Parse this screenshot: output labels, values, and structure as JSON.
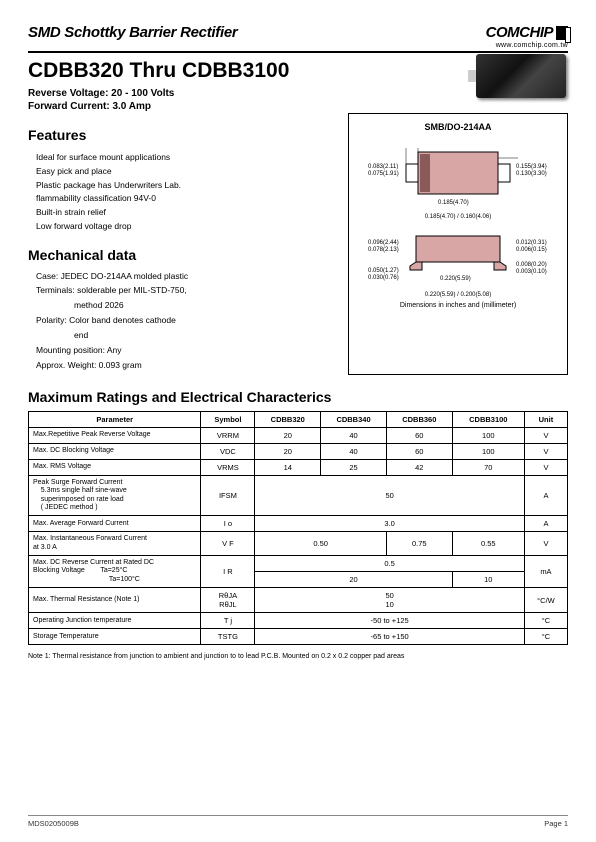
{
  "header": {
    "title": "SMD Schottky Barrier Rectifier",
    "logo_text": "COMCHIP",
    "url": "www.comchip.com.tw"
  },
  "part": {
    "title": "CDBB320 Thru CDBB3100",
    "rev_v": "Reverse Voltage: 20 - 100 Volts",
    "fwd_i": "Forward Current: 3.0 Amp"
  },
  "features": {
    "heading": "Features",
    "items": [
      "Ideal for surface mount applications",
      "Easy pick and place",
      "Plastic package has Underwriters Lab.",
      "flammability classification 94V-0",
      "Built-in strain relief",
      "Low forward voltage drop"
    ]
  },
  "mech": {
    "heading": "Mechanical data",
    "case": "Case: JEDEC DO-214AA  molded plastic",
    "term1": "Terminals:  solderable per   MIL-STD-750,",
    "term2": "method 2026",
    "pol1": "Polarity: Color  band denotes cathode",
    "pol2": "end",
    "mount": "Mounting position: Any",
    "weight": "Approx. Weight: 0.093 gram"
  },
  "pkg": {
    "title": "SMB/DO-214AA",
    "d1": "0.083(2.11)",
    "d1b": "0.075(1.91)",
    "d2": "0.155(3.94)",
    "d2b": "0.130(3.30)",
    "d3": "0.185(4.70)",
    "d3b": "0.160(4.06)",
    "d4": "0.012(0.31)",
    "d4b": "0.006(0.15)",
    "d5": "0.096(2.44)",
    "d5b": "0.078(2.13)",
    "d6": "0.050(1.27)",
    "d6b": "0.030(0.76)",
    "d7": "0.220(5.59)",
    "d7b": "0.200(5.08)",
    "d8": "0.008(0.20)",
    "d8b": "0.003(0.10)",
    "note": "Dimensions in inches and (millimeter)"
  },
  "ratings": {
    "heading": "Maximum Ratings and Electrical Characterics",
    "cols": [
      "Parameter",
      "Symbol",
      "CDBB320",
      "CDBB340",
      "CDBB360",
      "CDBB3100",
      "Unit"
    ],
    "rows": [
      {
        "param": "Max.Repetitive Peak Reverse Voltage",
        "sym": "VRRM",
        "v": [
          "20",
          "40",
          "60",
          "100"
        ],
        "unit": "V"
      },
      {
        "param": "Max. DC Blocking Voltage",
        "sym": "VDC",
        "v": [
          "20",
          "40",
          "60",
          "100"
        ],
        "unit": "V"
      },
      {
        "param": "Max. RMS Voltage",
        "sym": "VRMS",
        "v": [
          "14",
          "25",
          "42",
          "70"
        ],
        "unit": "V"
      },
      {
        "param": "Peak Surge Forward Current\n    5.3ms single half sine-wave\n    superimposed on rate load\n    ( JEDEC method )",
        "sym": "IFSM",
        "span": "50",
        "unit": "A"
      },
      {
        "param": "Max. Average Forward Current",
        "sym": "I o",
        "span": "3.0",
        "unit": "A"
      },
      {
        "param": "Max. Instantaneous Forward Current\nat 3.0 A",
        "sym": "V F",
        "v2": [
          "0.50",
          "0.75",
          "0.55"
        ],
        "unit": "V"
      },
      {
        "param": "Max. DC Reverse Current at Rated DC\nBlocking Voltage        Ta=25°C",
        "sym": "I R",
        "span": "0.5",
        "unit": "mA",
        "extra_row": {
          "p": "                                       Ta=100°C",
          "v2": [
            "20",
            "10"
          ]
        }
      },
      {
        "param": "Max. Thermal Resistance (Note 1)",
        "sym": "RθJA\nRθJL",
        "span": "50\n10",
        "unit": "°C/W"
      },
      {
        "param": "Operating Junction temperature",
        "sym": "T j",
        "span": "-50 to +125",
        "unit": "°C"
      },
      {
        "param": "Storage Temperature",
        "sym": "TSTG",
        "span": "-65 to +150",
        "unit": "°C"
      }
    ]
  },
  "note1": "Note 1: Thermal resistance from junction to ambient and junction to to lead P.C.B. Mounted on 0.2 x 0.2 copper pad areas",
  "footer": {
    "left": "MDS0205009B",
    "right": "Page 1"
  }
}
